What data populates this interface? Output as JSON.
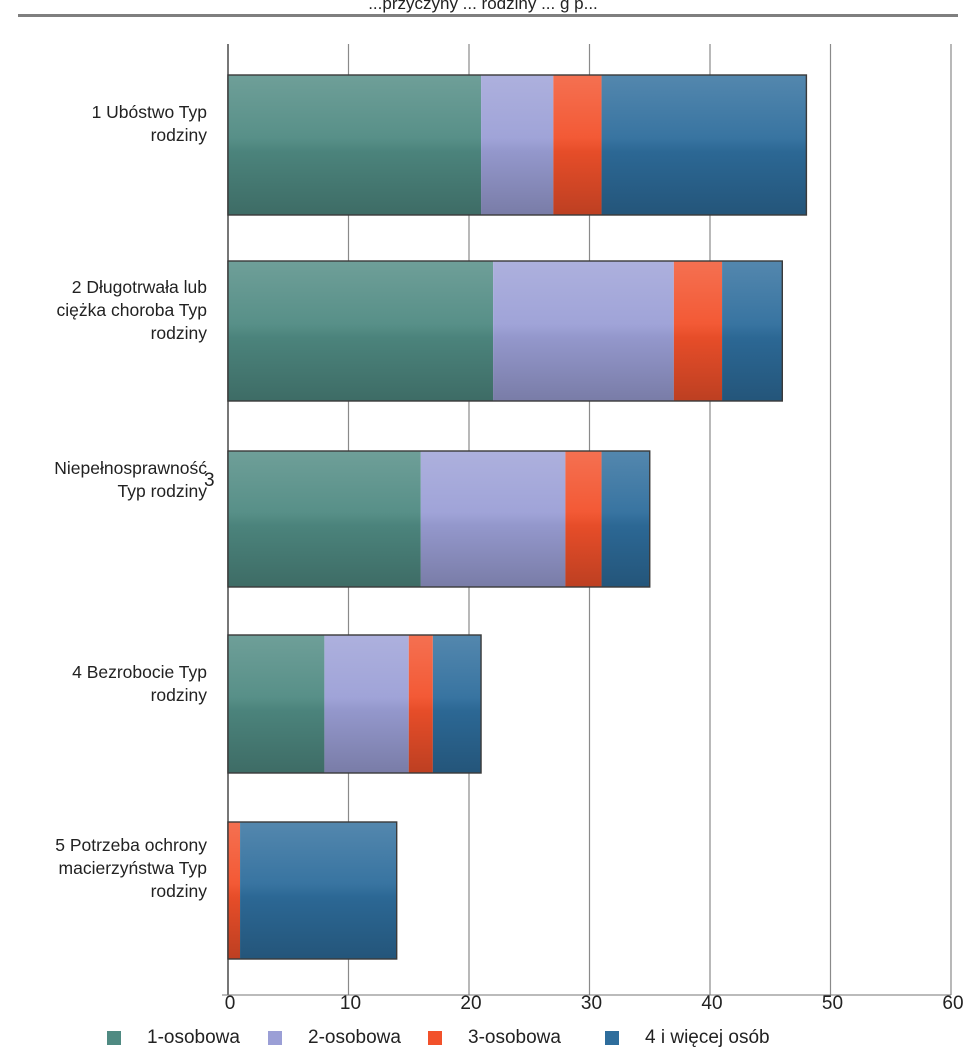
{
  "title": "...przyczyny ... rodziny ... g p...",
  "chart_data": {
    "type": "bar",
    "orientation": "horizontal",
    "stacked": true,
    "categories": [
      [
        "1 Ubóstwo Typ",
        "rodziny"
      ],
      [
        "2 Długotrwała lub",
        "ciężka choroba Typ",
        "rodziny"
      ],
      [
        "Niepełnosprawność",
        "Typ rodziny"
      ],
      [
        "4 Bezrobocie Typ",
        "rodziny"
      ],
      [
        "5 Potrzeba ochrony",
        "macierzyństwa Typ",
        "rodziny"
      ]
    ],
    "stray_label": "3",
    "series": [
      {
        "name": "1-osobowa",
        "color": "#4f8a82",
        "values": [
          21,
          22,
          16,
          8,
          0
        ]
      },
      {
        "name": "2-osobowa",
        "color": "#9b9fd6",
        "values": [
          6,
          15,
          12,
          7,
          0
        ]
      },
      {
        "name": "3-osobowa",
        "color": "#f2512b",
        "values": [
          4,
          4,
          3,
          2,
          1
        ]
      },
      {
        "name": "4 i więcej osób",
        "color": "#2e6d9c",
        "values": [
          17,
          5,
          4,
          4,
          13
        ]
      }
    ],
    "x_ticks": [
      "0",
      "10",
      "20",
      "30",
      "40",
      "50",
      "60"
    ],
    "xlim": [
      0,
      60
    ],
    "grid": true,
    "legend_position": "bottom"
  }
}
